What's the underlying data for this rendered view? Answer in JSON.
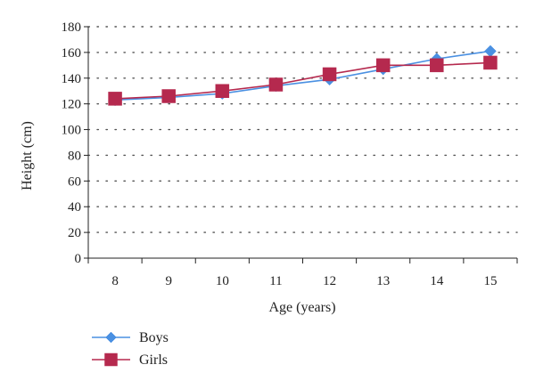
{
  "chart_data": {
    "type": "line",
    "title": "",
    "xlabel": "Age (years)",
    "ylabel": "Height (cm)",
    "x": [
      8,
      9,
      10,
      11,
      12,
      13,
      14,
      15
    ],
    "x_tick_labels": [
      "8",
      "9",
      "10",
      "11",
      "12",
      "13",
      "14",
      "15"
    ],
    "ylim": [
      0,
      180
    ],
    "y_ticks": [
      0,
      20,
      40,
      60,
      80,
      100,
      120,
      140,
      160,
      180
    ],
    "y_tick_labels": [
      "0",
      "20",
      "40",
      "60",
      "80",
      "100",
      "120",
      "140",
      "160",
      "180"
    ],
    "grid": "horizontal-dotted",
    "legend_position": "bottom-left",
    "series": [
      {
        "name": "Boys",
        "values": [
          123,
          125,
          128,
          134,
          139,
          147,
          155,
          161
        ],
        "color": "#4a90e2",
        "marker": "diamond"
      },
      {
        "name": "Girls",
        "values": [
          124,
          126,
          130,
          135,
          143,
          150,
          150,
          152
        ],
        "color": "#b5294e",
        "marker": "square"
      }
    ]
  }
}
